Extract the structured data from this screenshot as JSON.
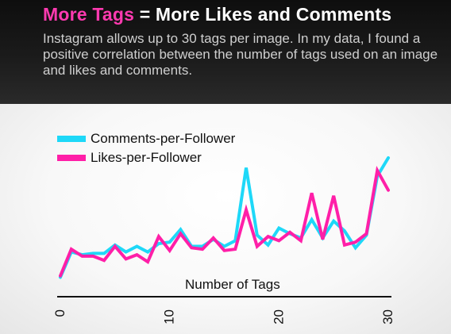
{
  "header": {
    "title_accent": "More Tags",
    "title_rest": " = More Likes and Comments",
    "subtitle": "Instagram allows up to 30 tags per image. In my data, I found a positive correlation between the number of tags used on an image and likes and comments."
  },
  "colors": {
    "comments": "#1ed8f8",
    "likes": "#ff1fa8",
    "axis": "#111111"
  },
  "chart_data": {
    "type": "line",
    "title": "",
    "xlabel": "Number of Tags",
    "ylabel": "",
    "x": [
      0,
      1,
      2,
      3,
      4,
      5,
      6,
      7,
      8,
      9,
      10,
      11,
      12,
      13,
      14,
      15,
      16,
      17,
      18,
      19,
      20,
      21,
      22,
      23,
      24,
      25,
      26,
      27,
      28,
      29,
      30
    ],
    "xlim": [
      0,
      30
    ],
    "ylim": [
      0,
      100
    ],
    "x_ticks": [
      "0",
      "10",
      "20",
      "30"
    ],
    "x_tick_values": [
      0,
      10,
      20,
      30
    ],
    "legend_position": "top-left",
    "grid": false,
    "series": [
      {
        "name": "Comments-per-Follower",
        "color_key": "comments",
        "values": [
          2,
          20,
          18,
          19,
          19,
          25,
          20,
          24,
          20,
          26,
          27,
          36,
          24,
          24,
          29,
          24,
          28,
          80,
          32,
          25,
          37,
          33,
          30,
          43,
          30,
          42,
          35,
          23,
          32,
          74,
          87
        ]
      },
      {
        "name": "Likes-per-Follower",
        "color_key": "likes",
        "values": [
          3,
          22,
          17,
          17,
          14,
          24,
          15,
          18,
          13,
          31,
          21,
          33,
          23,
          22,
          30,
          21,
          22,
          50,
          24,
          31,
          28,
          34,
          28,
          62,
          29,
          60,
          25,
          27,
          33,
          78,
          64
        ]
      }
    ]
  }
}
